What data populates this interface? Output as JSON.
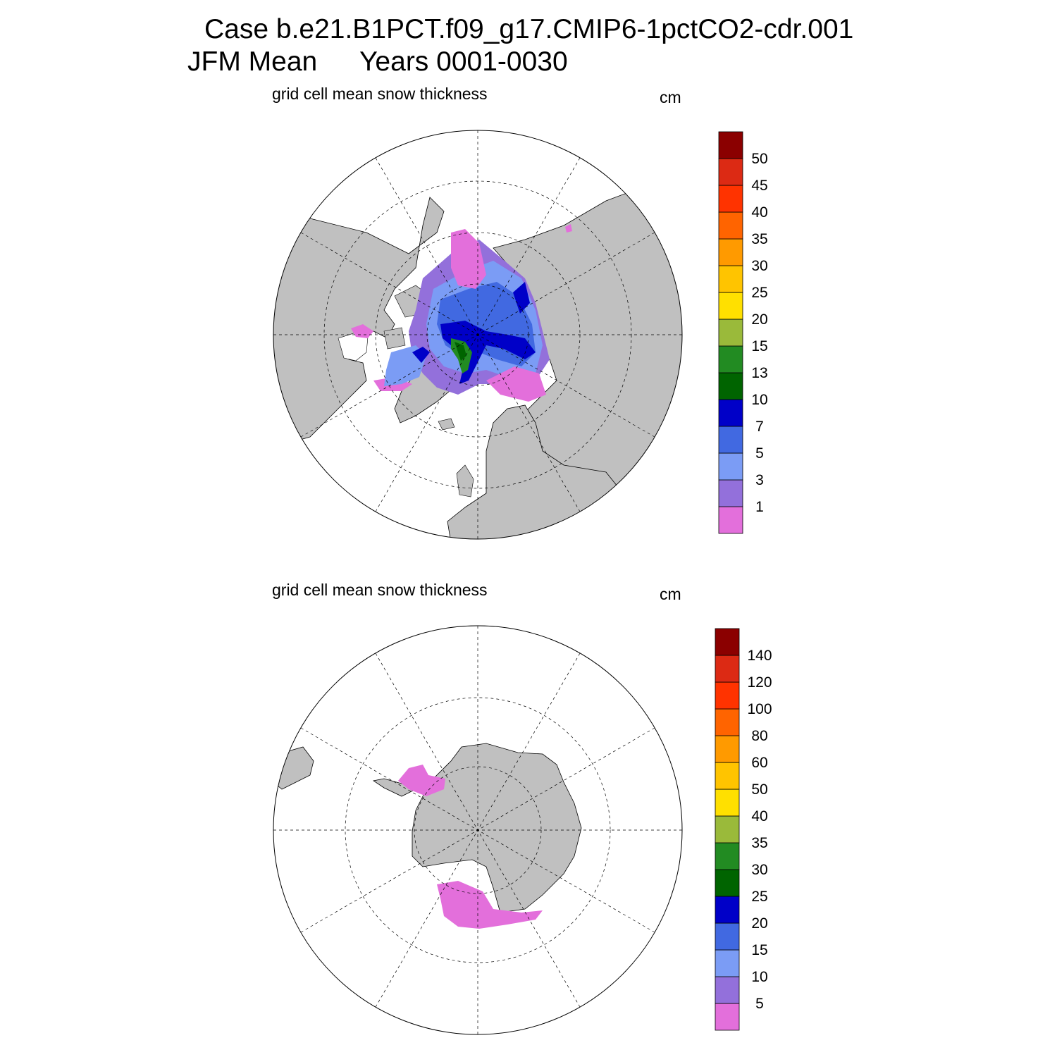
{
  "header": {
    "case_line": "Case b.e21.B1PCT.f09_g17.CMIP6-1pctCO2-cdr.001",
    "season": "JFM Mean",
    "years": "Years 0001-0030"
  },
  "land_color": "#c0c0c0",
  "panels": [
    {
      "id": "north",
      "subtitle": "grid cell mean snow thickness",
      "units": "cm",
      "hemisphere": "Northern Hemisphere (polar stereographic)",
      "colorbar": {
        "colors": [
          "#e36fdb",
          "#9370db",
          "#7b9cf5",
          "#4169e1",
          "#0000c8",
          "#006400",
          "#228b22",
          "#9aba3a",
          "#ffe000",
          "#ffc400",
          "#ff9a00",
          "#ff6400",
          "#ff3300",
          "#dc2a14",
          "#8b0000"
        ],
        "labels": [
          "1",
          "3",
          "5",
          "7",
          "10",
          "13",
          "15",
          "20",
          "25",
          "30",
          "35",
          "40",
          "45",
          "50"
        ]
      }
    },
    {
      "id": "south",
      "subtitle": "grid cell mean snow thickness",
      "units": "cm",
      "hemisphere": "Southern Hemisphere (polar stereographic)",
      "colorbar": {
        "colors": [
          "#e36fdb",
          "#9370db",
          "#7b9cf5",
          "#4169e1",
          "#0000c8",
          "#006400",
          "#228b22",
          "#9aba3a",
          "#ffe000",
          "#ffc400",
          "#ff9a00",
          "#ff6400",
          "#ff3300",
          "#dc2a14",
          "#8b0000"
        ],
        "labels": [
          "5",
          "10",
          "15",
          "20",
          "25",
          "30",
          "35",
          "40",
          "50",
          "60",
          "80",
          "100",
          "120",
          "140"
        ]
      }
    }
  ]
}
